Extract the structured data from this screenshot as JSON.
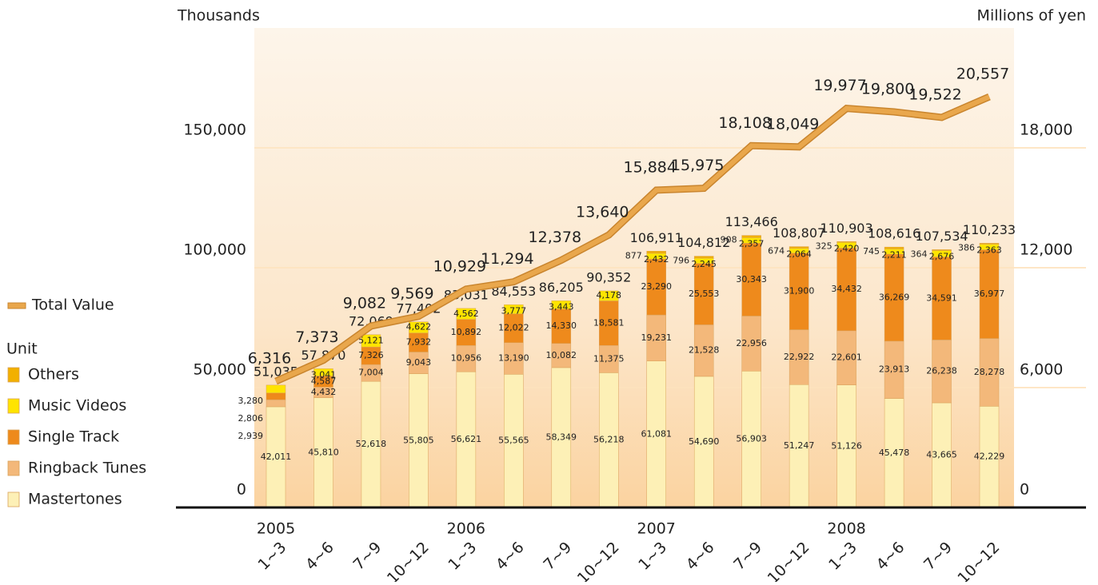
{
  "chart_data": {
    "type": "bar_line",
    "y_axis_label": "Thousands",
    "y2_axis_label": "Millions of yen",
    "legend_heading": "Unit",
    "years": [
      "2005",
      "2006",
      "2007",
      "2008"
    ],
    "categories": [
      "1~3",
      "4~6",
      "7~9",
      "10~12",
      "1~3",
      "4~6",
      "7~9",
      "10~12",
      "1~3",
      "4~6",
      "7~9",
      "10~12",
      "1~3",
      "4~6",
      "7~9",
      "10~12"
    ],
    "ylim": [
      0,
      200000
    ],
    "yticks": [
      0,
      {
        "value": 50000,
        "label": "50,000"
      },
      {
        "value": 100000,
        "label": "100,000"
      },
      {
        "value": 150000,
        "label": "150,000"
      }
    ],
    "y2lim": [
      0,
      24000
    ],
    "y2ticks": [
      0,
      {
        "value": 6000,
        "label": "6,000"
      },
      {
        "value": 12000,
        "label": "12,000"
      },
      {
        "value": 18000,
        "label": "18,000"
      }
    ],
    "grid": true,
    "series": [
      {
        "name": "Mastertones",
        "color": "#fdf0b6",
        "values": [
          42011,
          45810,
          52618,
          55805,
          56621,
          55565,
          58349,
          56218,
          61081,
          54690,
          56903,
          51247,
          51126,
          45478,
          43665,
          42229
        ],
        "value_labels": [
          "42,011",
          "45,810",
          "52,618",
          "55,805",
          "56,621",
          "55,565",
          "58,349",
          "56,218",
          "61,081",
          "54,690",
          "56,903",
          "51,247",
          "51,126",
          "45,478",
          "43,665",
          "42,229"
        ]
      },
      {
        "name": "Ringback Tunes",
        "color": "#f3b87a",
        "values": [
          2939,
          4432,
          7004,
          9043,
          10956,
          13190,
          10082,
          11375,
          19231,
          21528,
          22956,
          22922,
          22601,
          23913,
          26238,
          28278
        ],
        "value_labels": [
          "2,939",
          "4,432",
          "7,004",
          "9,043",
          "10,956",
          "13,190",
          "10,082",
          "11,375",
          "19,231",
          "21,528",
          "22,956",
          "22,922",
          "22,601",
          "23,913",
          "26,238",
          "28,278"
        ]
      },
      {
        "name": "Single Track",
        "color": "#ee8a1c",
        "values": [
          2806,
          4587,
          7326,
          7932,
          10892,
          12022,
          14330,
          18581,
          23290,
          25553,
          30343,
          31900,
          34432,
          36269,
          34591,
          36977
        ],
        "value_labels": [
          "2,806",
          "4,587",
          "7,326",
          "7,932",
          "10,892",
          "12,022",
          "14,330",
          "18,581",
          "23,290",
          "25,553",
          "30,343",
          "31,900",
          "34,432",
          "36,269",
          "34,591",
          "36,977"
        ]
      },
      {
        "name": "Music Videos",
        "color": "#ffe400",
        "values": [
          3280,
          3041,
          5121,
          4622,
          4562,
          3777,
          3443,
          4178,
          2432,
          2245,
          2357,
          2064,
          2420,
          2211,
          2676,
          2363
        ],
        "value_labels": [
          "3,280",
          "3,041",
          "5,121",
          "4,622",
          "4,562",
          "3,777",
          "3,443",
          "4,178",
          "2,432",
          "2,245",
          "2,357",
          "2,064",
          "2,420",
          "2,211",
          "2,676",
          "2,363"
        ]
      },
      {
        "name": "Others",
        "color": "#f2b000",
        "values": [
          null,
          null,
          null,
          null,
          null,
          null,
          null,
          null,
          877,
          796,
          908,
          674,
          325,
          745,
          364,
          386
        ],
        "value_labels": [
          null,
          null,
          null,
          null,
          null,
          null,
          null,
          null,
          "877",
          "796",
          "908",
          "674",
          "325",
          "745",
          "364",
          "386"
        ]
      },
      {
        "name": "Total Value",
        "color": "#e9a74c",
        "axis": "y2",
        "values": [
          6316,
          7373,
          9082,
          9569,
          10929,
          11294,
          12378,
          13640,
          15884,
          15975,
          18108,
          18049,
          19977,
          19800,
          19522,
          20557
        ],
        "value_labels": [
          "6,316",
          "7,373",
          "9,082",
          "9,569",
          "10,929",
          "11,294",
          "12,378",
          "13,640",
          "15,884",
          "15,975",
          "18,108",
          "18,049",
          "19,977",
          "19,800",
          "19,522",
          "20,557"
        ]
      }
    ],
    "totals": [
      51035,
      57870,
      72069,
      77402,
      83031,
      84553,
      86205,
      90352,
      106911,
      104812,
      113466,
      108807,
      110903,
      108616,
      107534,
      110233
    ],
    "total_labels": [
      "51,035",
      "57,870",
      "72,069",
      "77,402",
      "83,031",
      "84,553",
      "86,205",
      "90,352",
      "106,911",
      "104,812",
      "113,466",
      "108,807",
      "110,903",
      "108,616",
      "107,534",
      "110,233"
    ]
  }
}
